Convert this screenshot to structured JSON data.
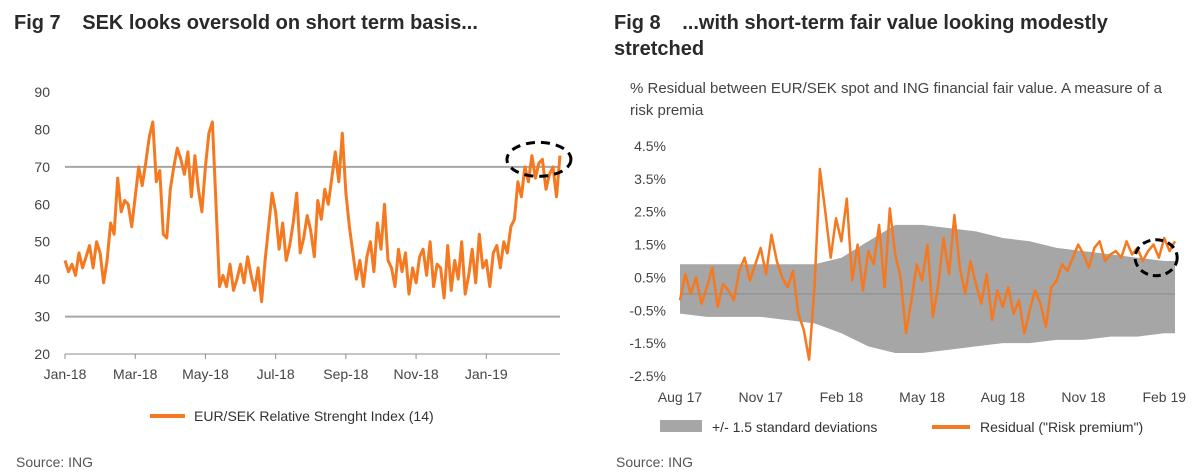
{
  "charts": [
    {
      "figure_number": "Fig 7",
      "title": "SEK looks oversold on short term basis...",
      "source": "Source: ING",
      "legend": "EUR/SEK Relative Strenght Index (14)",
      "colors": {
        "line": "#f47920",
        "reference_line": "#a6a6a6",
        "axis": "#8c8c8c",
        "highlight": "#000000"
      }
    },
    {
      "figure_number": "Fig 8",
      "title": "...with short-term fair value looking modestly stretched",
      "subtitle": "% Residual between EUR/SEK spot and ING financial fair value. A measure of a risk premia",
      "source": "Source: ING",
      "legend": [
        "+/- 1.5 standard deviations",
        "Residual (\"Risk premium\")"
      ],
      "colors": {
        "line": "#f47920",
        "band": "#a6a6a6",
        "axis": "#8c8c8c",
        "highlight": "#000000"
      }
    }
  ],
  "chart_data": [
    {
      "type": "line",
      "title": "SEK looks oversold on short term basis...",
      "ylim": [
        20,
        90
      ],
      "yticks": [
        "20",
        "30",
        "40",
        "50",
        "60",
        "70",
        "80",
        "90"
      ],
      "x_ticks": [
        "Jan-18",
        "Mar-18",
        "May-18",
        "Jul-18",
        "Sep-18",
        "Nov-18",
        "Jan-19"
      ],
      "x_range_months": [
        0,
        14.1
      ],
      "reference_line": 70,
      "series": [
        {
          "name": "EUR/SEK Relative Strenght Index (14)",
          "x": [
            0,
            0.1,
            0.2,
            0.3,
            0.4,
            0.5,
            0.6,
            0.7,
            0.8,
            0.9,
            1.0,
            1.1,
            1.2,
            1.3,
            1.4,
            1.5,
            1.6,
            1.7,
            1.8,
            1.9,
            2.0,
            2.1,
            2.2,
            2.3,
            2.4,
            2.5,
            2.6,
            2.7,
            2.8,
            2.9,
            3.0,
            3.1,
            3.2,
            3.3,
            3.4,
            3.5,
            3.6,
            3.7,
            3.8,
            3.9,
            4.0,
            4.1,
            4.2,
            4.3,
            4.4,
            4.5,
            4.6,
            4.7,
            4.8,
            4.9,
            5.0,
            5.1,
            5.2,
            5.3,
            5.4,
            5.5,
            5.6,
            5.7,
            5.8,
            5.9,
            6.0,
            6.1,
            6.2,
            6.3,
            6.4,
            6.5,
            6.6,
            6.7,
            6.8,
            6.9,
            7.0,
            7.1,
            7.2,
            7.3,
            7.4,
            7.5,
            7.6,
            7.7,
            7.8,
            7.9,
            8.0,
            8.1,
            8.2,
            8.3,
            8.4,
            8.5,
            8.6,
            8.7,
            8.8,
            8.9,
            9.0,
            9.1,
            9.2,
            9.3,
            9.4,
            9.5,
            9.6,
            9.7,
            9.8,
            9.9,
            10.0,
            10.1,
            10.2,
            10.3,
            10.4,
            10.5,
            10.6,
            10.7,
            10.8,
            10.9,
            11.0,
            11.1,
            11.2,
            11.3,
            11.4,
            11.5,
            11.6,
            11.7,
            11.8,
            11.9,
            12.0,
            12.1,
            12.2,
            12.3,
            12.4,
            12.5,
            12.6,
            12.7,
            12.8,
            12.9,
            13.0,
            13.1,
            13.2,
            13.3,
            13.4,
            13.5,
            13.6,
            13.7,
            13.8,
            13.9,
            14.0,
            14.1
          ],
          "values": [
            45,
            42,
            44,
            41,
            47,
            43,
            46,
            49,
            43,
            50,
            47,
            39,
            45,
            55,
            52,
            67,
            58,
            61,
            60,
            54,
            62,
            70,
            65,
            71,
            78,
            82,
            66,
            69,
            52,
            51,
            64,
            70,
            75,
            72,
            68,
            74,
            62,
            73,
            64,
            58,
            70,
            79,
            82,
            60,
            38,
            41,
            38,
            44,
            37,
            40,
            44,
            39,
            46,
            41,
            37,
            43,
            34,
            45,
            54,
            63,
            58,
            48,
            55,
            45,
            49,
            55,
            63,
            47,
            51,
            57,
            53,
            46,
            61,
            56,
            64,
            60,
            67,
            74,
            66,
            79,
            63,
            54,
            47,
            40,
            45,
            38,
            46,
            50,
            42,
            55,
            48,
            60,
            45,
            43,
            38,
            48,
            42,
            47,
            36,
            43,
            39,
            46,
            48,
            41,
            50,
            38,
            44,
            43,
            35,
            49,
            37,
            45,
            40,
            50,
            36,
            41,
            48,
            39,
            52,
            43,
            45,
            38,
            47,
            49,
            43,
            50,
            47,
            54,
            56,
            66,
            62,
            70,
            66,
            73,
            67,
            71,
            72,
            64,
            68,
            70,
            62,
            73
          ]
        }
      ]
    },
    {
      "type": "area",
      "title": "...with short-term fair value looking modestly stretched",
      "ylim": [
        -2.5,
        4.5
      ],
      "yticks": [
        "-2.5%",
        "-1.5%",
        "-0.5%",
        "0.5%",
        "1.5%",
        "2.5%",
        "3.5%",
        "4.5%"
      ],
      "x_ticks": [
        "Aug 17",
        "Nov 17",
        "Feb 18",
        "May 18",
        "Aug 18",
        "Nov 18",
        "Feb 19"
      ],
      "x_range_months": [
        0,
        18.4
      ],
      "band": {
        "name": "+/- 1.5 standard deviations",
        "x": [
          0,
          1,
          2,
          3,
          4,
          5,
          6,
          7,
          8,
          9,
          10,
          11,
          12,
          13,
          14,
          15,
          16,
          17,
          18,
          18.4
        ],
        "upper": [
          0.9,
          0.9,
          0.9,
          0.9,
          0.9,
          0.9,
          1.1,
          1.6,
          2.1,
          2.1,
          2.0,
          1.9,
          1.7,
          1.6,
          1.4,
          1.3,
          1.2,
          1.1,
          1.0,
          1.0
        ],
        "lower": [
          -0.6,
          -0.7,
          -0.7,
          -0.7,
          -0.8,
          -0.9,
          -1.2,
          -1.6,
          -1.8,
          -1.8,
          -1.7,
          -1.6,
          -1.5,
          -1.5,
          -1.4,
          -1.4,
          -1.3,
          -1.3,
          -1.2,
          -1.2
        ]
      },
      "series": [
        {
          "name": "Residual (\"Risk premium\")",
          "x": [
            0,
            0.2,
            0.4,
            0.6,
            0.8,
            1.0,
            1.2,
            1.4,
            1.6,
            1.8,
            2.0,
            2.2,
            2.4,
            2.6,
            2.8,
            3.0,
            3.2,
            3.4,
            3.6,
            3.8,
            4.0,
            4.2,
            4.4,
            4.6,
            4.8,
            5.0,
            5.2,
            5.4,
            5.6,
            5.8,
            6.0,
            6.2,
            6.4,
            6.6,
            6.8,
            7.0,
            7.2,
            7.4,
            7.6,
            7.8,
            8.0,
            8.2,
            8.4,
            8.6,
            8.8,
            9.0,
            9.2,
            9.4,
            9.6,
            9.8,
            10.0,
            10.2,
            10.4,
            10.6,
            10.8,
            11.0,
            11.2,
            11.4,
            11.6,
            11.8,
            12.0,
            12.2,
            12.4,
            12.6,
            12.8,
            13.0,
            13.2,
            13.4,
            13.6,
            13.8,
            14.0,
            14.2,
            14.4,
            14.6,
            14.8,
            15.0,
            15.2,
            15.4,
            15.6,
            15.8,
            16.0,
            16.2,
            16.4,
            16.6,
            16.8,
            17.0,
            17.2,
            17.4,
            17.6,
            17.8,
            18.0,
            18.2,
            18.4
          ],
          "values": [
            -0.2,
            0.6,
            0.0,
            0.5,
            -0.3,
            0.2,
            0.8,
            -0.4,
            0.3,
            0.1,
            -0.2,
            0.7,
            1.1,
            0.4,
            0.9,
            1.4,
            0.6,
            1.8,
            1.0,
            0.5,
            0.2,
            0.7,
            -0.6,
            -1.1,
            -2.0,
            0.2,
            3.8,
            2.5,
            1.1,
            2.3,
            1.6,
            2.9,
            0.4,
            1.5,
            0.1,
            1.3,
            0.9,
            2.1,
            0.2,
            2.6,
            1.2,
            0.5,
            -1.2,
            -0.2,
            0.9,
            0.4,
            1.5,
            -0.7,
            0.3,
            1.7,
            0.6,
            2.4,
            0.8,
            0.0,
            1.0,
            0.3,
            -0.3,
            0.6,
            -0.8,
            0.1,
            -0.4,
            0.2,
            -0.6,
            -0.2,
            -1.2,
            -0.5,
            0.1,
            -0.3,
            -1.0,
            0.2,
            0.4,
            0.9,
            0.7,
            1.1,
            1.5,
            1.2,
            0.8,
            1.4,
            1.6,
            1.0,
            1.2,
            1.3,
            1.1,
            1.6,
            1.2,
            1.4,
            1.0,
            1.3,
            1.5,
            1.1,
            1.7,
            1.3,
            1.6
          ]
        }
      ]
    }
  ]
}
